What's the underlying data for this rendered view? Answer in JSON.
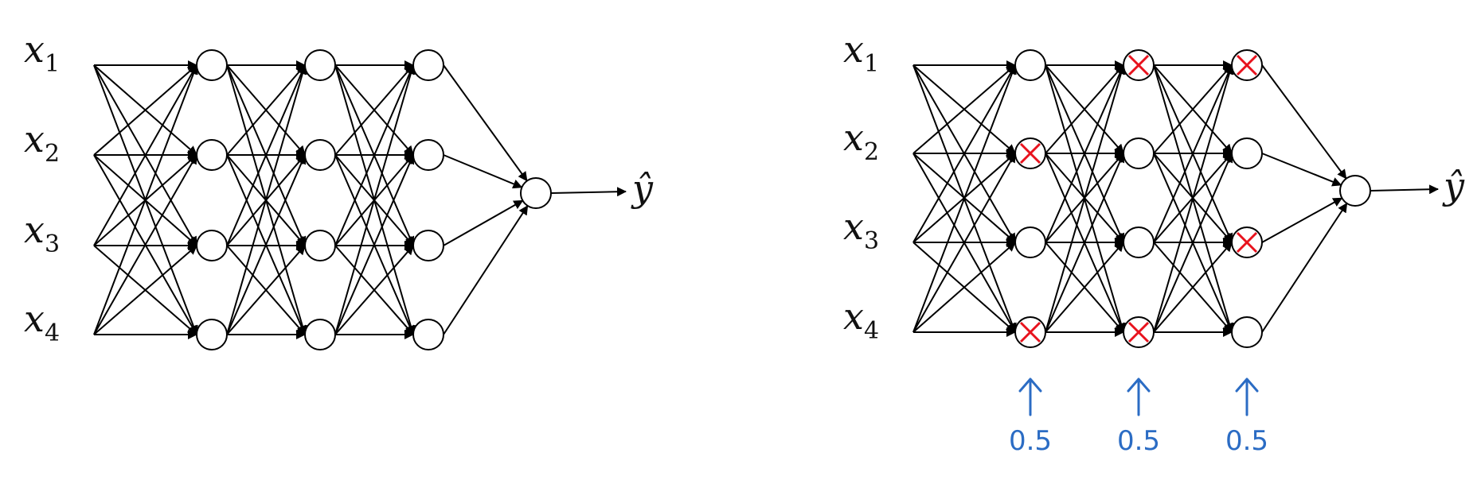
{
  "inputs": [
    {
      "base": "x",
      "sub": "1"
    },
    {
      "base": "x",
      "sub": "2"
    },
    {
      "base": "x",
      "sub": "3"
    },
    {
      "base": "x",
      "sub": "4"
    }
  ],
  "output_label": "ŷ",
  "networks": [
    {
      "id": "full-network",
      "dropped": [
        [],
        [],
        []
      ]
    },
    {
      "id": "dropout-network",
      "dropped": [
        [
          1,
          3
        ],
        [
          0,
          3
        ],
        [
          0,
          2
        ]
      ],
      "keep_probs": [
        "0.5",
        "0.5",
        "0.5"
      ]
    }
  ],
  "colors": {
    "line": "#000000",
    "drop_mark": "#e8121d",
    "handwriting": "#2b6cc4"
  }
}
